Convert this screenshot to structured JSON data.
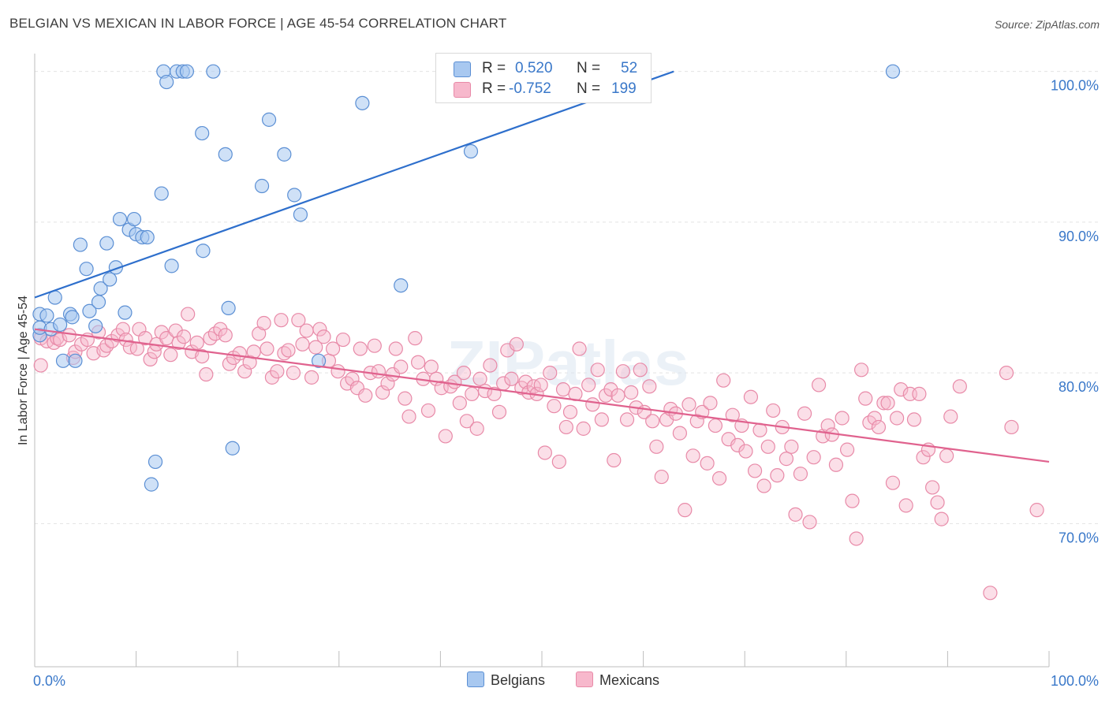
{
  "title": "BELGIAN VS MEXICAN IN LABOR FORCE | AGE 45-54 CORRELATION CHART",
  "source": "Source: ZipAtlas.com",
  "watermark": "ZIPatlas",
  "legend": {
    "rows": [
      {
        "r_label": "R =",
        "r_value": "0.520",
        "n_label": "N =",
        "n_value": "52"
      },
      {
        "r_label": "R =",
        "r_value": "-0.752",
        "n_label": "N =",
        "n_value": "199"
      }
    ]
  },
  "bottom_legend": {
    "belgians": "Belgians",
    "mexicans": "Mexicans"
  },
  "colors": {
    "belgian_fill": "#a8c8f0",
    "belgian_stroke": "#5b8fd4",
    "belgian_line": "#2e6fcc",
    "mexican_fill": "#f7b8cc",
    "mexican_stroke": "#e88aa8",
    "mexican_line": "#e0628e",
    "axis_text": "#3a78c9",
    "grid": "#e3e3e3"
  },
  "chart_data": {
    "type": "scatter",
    "title": "BELGIAN VS MEXICAN IN LABOR FORCE | AGE 45-54 CORRELATION CHART",
    "xlabel": "",
    "ylabel": "In Labor Force | Age 45-54",
    "x_tick_labels": [
      "0.0%",
      "100.0%"
    ],
    "y_tick_labels": [
      "70.0%",
      "80.0%",
      "90.0%",
      "100.0%"
    ],
    "xlim": [
      0,
      100
    ],
    "ylim": [
      60.5,
      101.5
    ],
    "grid": true,
    "legend_placement": "top-center",
    "series": [
      {
        "name": "Belgians",
        "r": 0.52,
        "n": 52,
        "trend": {
          "x": [
            0,
            63
          ],
          "y": [
            85.0,
            100.0
          ]
        },
        "points": [
          [
            0.5,
            83.9
          ],
          [
            0.5,
            82.5
          ],
          [
            0.5,
            83.0
          ],
          [
            1.2,
            83.8
          ],
          [
            1.6,
            82.9
          ],
          [
            2.0,
            85.0
          ],
          [
            2.5,
            83.2
          ],
          [
            2.8,
            80.8
          ],
          [
            3.5,
            83.9
          ],
          [
            3.7,
            83.7
          ],
          [
            4.0,
            80.8
          ],
          [
            4.5,
            88.5
          ],
          [
            5.1,
            86.9
          ],
          [
            5.4,
            84.1
          ],
          [
            6.0,
            83.1
          ],
          [
            6.3,
            84.7
          ],
          [
            6.5,
            85.6
          ],
          [
            7.1,
            88.6
          ],
          [
            7.4,
            86.2
          ],
          [
            8.0,
            87.0
          ],
          [
            8.4,
            90.2
          ],
          [
            8.9,
            84.0
          ],
          [
            9.3,
            89.5
          ],
          [
            9.8,
            90.2
          ],
          [
            10.0,
            89.2
          ],
          [
            10.6,
            89.0
          ],
          [
            11.1,
            89.0
          ],
          [
            11.5,
            72.6
          ],
          [
            11.9,
            74.1
          ],
          [
            12.5,
            91.9
          ],
          [
            12.7,
            100.0
          ],
          [
            13.0,
            99.3
          ],
          [
            13.5,
            87.1
          ],
          [
            14.0,
            100.0
          ],
          [
            14.6,
            100.0
          ],
          [
            15.0,
            100.0
          ],
          [
            16.5,
            95.9
          ],
          [
            16.6,
            88.1
          ],
          [
            17.6,
            100.0
          ],
          [
            18.8,
            94.5
          ],
          [
            19.1,
            84.3
          ],
          [
            19.5,
            75.0
          ],
          [
            22.4,
            92.4
          ],
          [
            23.1,
            96.8
          ],
          [
            24.6,
            94.5
          ],
          [
            25.6,
            91.8
          ],
          [
            26.2,
            90.5
          ],
          [
            28.0,
            80.8
          ],
          [
            32.3,
            97.9
          ],
          [
            36.1,
            85.8
          ],
          [
            43.0,
            94.7
          ],
          [
            84.6,
            100.0
          ]
        ]
      },
      {
        "name": "Mexicans",
        "r": -0.752,
        "n": 199,
        "trend": {
          "x": [
            0,
            100
          ],
          "y": [
            82.9,
            74.1
          ]
        },
        "points": [
          [
            0.6,
            80.5
          ],
          [
            0.6,
            82.3
          ],
          [
            1.2,
            82.1
          ],
          [
            1.9,
            82.0
          ],
          [
            2.2,
            82.3
          ],
          [
            2.5,
            82.2
          ],
          [
            3.4,
            82.5
          ],
          [
            3.8,
            81.0
          ],
          [
            4.0,
            81.4
          ],
          [
            4.6,
            81.9
          ],
          [
            5.2,
            82.2
          ],
          [
            5.8,
            81.3
          ],
          [
            6.3,
            82.7
          ],
          [
            6.8,
            81.5
          ],
          [
            7.1,
            81.8
          ],
          [
            7.6,
            82.1
          ],
          [
            8.2,
            82.5
          ],
          [
            8.7,
            82.9
          ],
          [
            9.0,
            82.2
          ],
          [
            9.4,
            81.7
          ],
          [
            10.1,
            81.6
          ],
          [
            10.3,
            82.9
          ],
          [
            10.9,
            82.3
          ],
          [
            11.4,
            80.9
          ],
          [
            11.8,
            81.4
          ],
          [
            12.0,
            81.9
          ],
          [
            12.5,
            82.7
          ],
          [
            13.0,
            82.3
          ],
          [
            13.4,
            81.2
          ],
          [
            13.9,
            82.8
          ],
          [
            14.2,
            82.0
          ],
          [
            14.7,
            82.4
          ],
          [
            15.1,
            83.9
          ],
          [
            15.5,
            81.4
          ],
          [
            16.0,
            82.0
          ],
          [
            16.5,
            81.1
          ],
          [
            16.9,
            79.9
          ],
          [
            17.3,
            82.3
          ],
          [
            17.8,
            82.6
          ],
          [
            18.3,
            82.9
          ],
          [
            18.8,
            82.5
          ],
          [
            19.2,
            80.6
          ],
          [
            19.6,
            81.0
          ],
          [
            20.2,
            81.3
          ],
          [
            20.7,
            80.1
          ],
          [
            21.2,
            80.7
          ],
          [
            21.6,
            81.4
          ],
          [
            22.1,
            82.6
          ],
          [
            22.6,
            83.3
          ],
          [
            22.9,
            81.6
          ],
          [
            23.4,
            79.7
          ],
          [
            23.9,
            80.1
          ],
          [
            24.3,
            83.5
          ],
          [
            24.6,
            81.3
          ],
          [
            25.0,
            81.5
          ],
          [
            25.5,
            80.0
          ],
          [
            26.0,
            83.5
          ],
          [
            26.4,
            81.9
          ],
          [
            26.8,
            82.8
          ],
          [
            27.3,
            79.7
          ],
          [
            27.7,
            81.7
          ],
          [
            28.1,
            82.9
          ],
          [
            28.5,
            82.4
          ],
          [
            29.0,
            80.8
          ],
          [
            29.4,
            81.6
          ],
          [
            29.9,
            80.1
          ],
          [
            30.4,
            82.2
          ],
          [
            30.8,
            79.3
          ],
          [
            31.3,
            79.6
          ],
          [
            31.8,
            79.0
          ],
          [
            32.1,
            81.6
          ],
          [
            32.6,
            78.5
          ],
          [
            33.1,
            80.0
          ],
          [
            33.5,
            81.8
          ],
          [
            33.9,
            80.1
          ],
          [
            34.3,
            78.7
          ],
          [
            34.8,
            79.3
          ],
          [
            35.3,
            79.9
          ],
          [
            35.6,
            81.6
          ],
          [
            36.1,
            80.4
          ],
          [
            36.5,
            78.3
          ],
          [
            36.9,
            77.1
          ],
          [
            37.5,
            82.3
          ],
          [
            37.8,
            80.7
          ],
          [
            38.3,
            79.6
          ],
          [
            38.8,
            77.5
          ],
          [
            39.1,
            80.4
          ],
          [
            39.6,
            79.6
          ],
          [
            40.1,
            79.0
          ],
          [
            40.5,
            75.8
          ],
          [
            41.0,
            79.1
          ],
          [
            41.4,
            79.4
          ],
          [
            41.9,
            78.0
          ],
          [
            42.3,
            80.0
          ],
          [
            42.6,
            76.8
          ],
          [
            43.1,
            78.6
          ],
          [
            43.6,
            76.3
          ],
          [
            43.9,
            79.6
          ],
          [
            44.4,
            78.8
          ],
          [
            44.9,
            80.5
          ],
          [
            45.3,
            78.6
          ],
          [
            45.8,
            77.4
          ],
          [
            46.2,
            79.3
          ],
          [
            46.6,
            81.5
          ],
          [
            47.0,
            79.6
          ],
          [
            47.5,
            81.9
          ],
          [
            48.0,
            79.0
          ],
          [
            48.4,
            79.4
          ],
          [
            48.7,
            78.7
          ],
          [
            49.2,
            79.1
          ],
          [
            49.5,
            78.6
          ],
          [
            49.9,
            79.2
          ],
          [
            50.3,
            74.7
          ],
          [
            50.8,
            80.0
          ],
          [
            51.2,
            77.8
          ],
          [
            51.7,
            74.1
          ],
          [
            52.1,
            78.9
          ],
          [
            52.4,
            76.4
          ],
          [
            52.8,
            77.4
          ],
          [
            53.3,
            78.6
          ],
          [
            53.7,
            81.6
          ],
          [
            54.1,
            76.3
          ],
          [
            54.6,
            79.2
          ],
          [
            55.0,
            77.9
          ],
          [
            55.5,
            80.2
          ],
          [
            55.9,
            76.9
          ],
          [
            56.3,
            78.5
          ],
          [
            56.8,
            78.9
          ],
          [
            57.1,
            74.2
          ],
          [
            57.5,
            78.5
          ],
          [
            58.0,
            80.1
          ],
          [
            58.4,
            76.9
          ],
          [
            58.8,
            78.7
          ],
          [
            59.3,
            77.7
          ],
          [
            59.7,
            80.2
          ],
          [
            60.1,
            77.4
          ],
          [
            60.6,
            79.1
          ],
          [
            60.9,
            76.8
          ],
          [
            61.3,
            75.1
          ],
          [
            61.8,
            73.1
          ],
          [
            62.3,
            76.9
          ],
          [
            62.7,
            77.6
          ],
          [
            63.2,
            77.3
          ],
          [
            63.6,
            76.0
          ],
          [
            64.1,
            70.9
          ],
          [
            64.5,
            77.9
          ],
          [
            64.9,
            74.5
          ],
          [
            65.3,
            76.8
          ],
          [
            65.8,
            77.4
          ],
          [
            66.3,
            74.0
          ],
          [
            66.6,
            78.0
          ],
          [
            67.1,
            76.5
          ],
          [
            67.5,
            73.0
          ],
          [
            67.9,
            79.5
          ],
          [
            68.4,
            75.6
          ],
          [
            68.8,
            77.2
          ],
          [
            69.3,
            75.2
          ],
          [
            69.7,
            76.5
          ],
          [
            70.1,
            74.8
          ],
          [
            70.6,
            78.4
          ],
          [
            71.0,
            73.5
          ],
          [
            71.5,
            76.2
          ],
          [
            71.9,
            72.5
          ],
          [
            72.3,
            75.1
          ],
          [
            72.8,
            77.5
          ],
          [
            73.2,
            73.2
          ],
          [
            73.7,
            76.4
          ],
          [
            74.1,
            74.3
          ],
          [
            74.6,
            75.1
          ],
          [
            75.0,
            70.6
          ],
          [
            75.5,
            73.3
          ],
          [
            75.9,
            77.3
          ],
          [
            76.4,
            70.1
          ],
          [
            76.8,
            74.4
          ],
          [
            77.3,
            79.2
          ],
          [
            77.7,
            75.8
          ],
          [
            78.2,
            76.5
          ],
          [
            78.6,
            75.9
          ],
          [
            79.0,
            73.9
          ],
          [
            79.6,
            77.0
          ],
          [
            80.1,
            74.9
          ],
          [
            80.6,
            71.5
          ],
          [
            81.0,
            69.0
          ],
          [
            81.5,
            80.2
          ],
          [
            81.9,
            78.3
          ],
          [
            82.3,
            76.7
          ],
          [
            82.8,
            77.0
          ],
          [
            83.2,
            76.4
          ],
          [
            83.7,
            78.0
          ],
          [
            84.1,
            78.0
          ],
          [
            84.6,
            72.7
          ],
          [
            85.0,
            77.0
          ],
          [
            85.4,
            78.9
          ],
          [
            85.9,
            71.2
          ],
          [
            86.3,
            78.6
          ],
          [
            86.7,
            76.9
          ],
          [
            87.2,
            78.6
          ],
          [
            87.6,
            74.4
          ],
          [
            88.1,
            74.9
          ],
          [
            88.5,
            72.4
          ],
          [
            89.0,
            71.4
          ],
          [
            89.4,
            70.3
          ],
          [
            89.9,
            74.5
          ],
          [
            90.3,
            77.1
          ],
          [
            91.2,
            79.1
          ],
          [
            94.2,
            65.4
          ],
          [
            95.8,
            80.0
          ],
          [
            96.3,
            76.4
          ],
          [
            98.8,
            70.9
          ]
        ]
      }
    ]
  }
}
